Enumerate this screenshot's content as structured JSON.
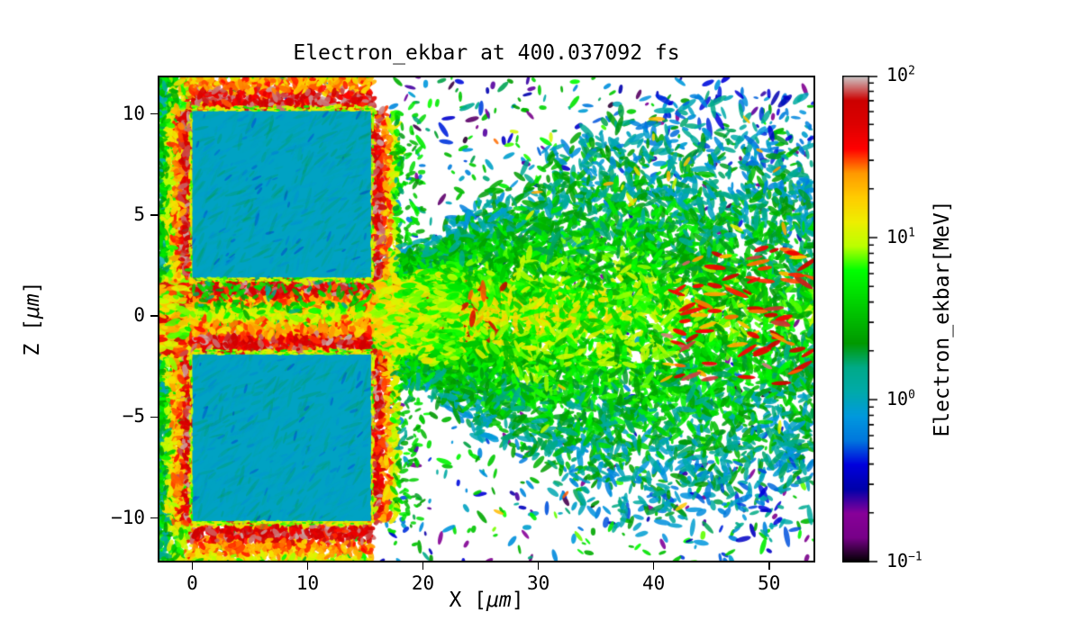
{
  "figure": {
    "title": "Electron_ekbar at 400.037092 fs"
  },
  "axes": {
    "xlabel_parts": [
      "X [",
      "μm",
      "]"
    ],
    "ylabel_parts": [
      "Z [",
      "μm",
      "]"
    ],
    "x_ticks": [
      {
        "value": 0,
        "label": "0"
      },
      {
        "value": 10,
        "label": "10"
      },
      {
        "value": 20,
        "label": "20"
      },
      {
        "value": 30,
        "label": "30"
      },
      {
        "value": 40,
        "label": "40"
      },
      {
        "value": 50,
        "label": "50"
      }
    ],
    "y_ticks": [
      {
        "value": 10,
        "label": "10"
      },
      {
        "value": 5,
        "label": "5"
      },
      {
        "value": 0,
        "label": "0"
      },
      {
        "value": -5,
        "label": "−5"
      },
      {
        "value": -10,
        "label": "−10"
      }
    ]
  },
  "colorbar": {
    "label": "Electron_ekbar[MeV]",
    "scale": "log",
    "vmin": 0.1,
    "vmax": 100,
    "tick_exponents": [
      2,
      1,
      0,
      -1
    ]
  },
  "chart_data": {
    "type": "heatmap",
    "title": "Electron_ekbar at 400.037092 fs",
    "quantity": "Electron_ekbar",
    "unit": "MeV",
    "time_fs": 400.037092,
    "xlabel": "X [μm]",
    "ylabel": "Z [μm]",
    "xlim": [
      -3,
      54
    ],
    "ylim": [
      -12.2,
      11.9
    ],
    "x_ticks": [
      0,
      10,
      20,
      30,
      40,
      50
    ],
    "y_ticks": [
      10,
      5,
      0,
      -5,
      -10
    ],
    "colorbar": {
      "label": "Electron_ekbar[MeV]",
      "scale": "log",
      "vmin": 0.1,
      "vmax": 100,
      "ticks": [
        100,
        10,
        1,
        0.1
      ]
    },
    "colormap": "nipy_spectral",
    "colormap_stops": [
      [
        0,
        0,
        0
      ],
      [
        0.4667,
        0,
        0.5333
      ],
      [
        0.5333,
        0,
        0.6
      ],
      [
        0,
        0,
        0.6667
      ],
      [
        0,
        0,
        0.8667
      ],
      [
        0,
        0.4667,
        0.8667
      ],
      [
        0,
        0.6,
        0.8667
      ],
      [
        0,
        0.6667,
        0.6667
      ],
      [
        0,
        0.6667,
        0.5333
      ],
      [
        0,
        0.6,
        0
      ],
      [
        0,
        0.7333,
        0
      ],
      [
        0,
        0.8667,
        0
      ],
      [
        0,
        1,
        0
      ],
      [
        0.7333,
        1,
        0
      ],
      [
        0.9333,
        0.9333,
        0
      ],
      [
        1,
        0.8,
        0
      ],
      [
        1,
        0.6,
        0
      ],
      [
        1,
        0,
        0
      ],
      [
        0.8667,
        0,
        0
      ],
      [
        0.8,
        0,
        0
      ],
      [
        0.8,
        0.8,
        0.8
      ]
    ],
    "render_seed": 7,
    "features": [
      {
        "name": "left-preplasma",
        "type": "speckle-band",
        "x": [
          -3,
          0.2
        ],
        "z": [
          -12.2,
          11.9
        ],
        "value_mev": [
          0.6,
          60
        ]
      },
      {
        "name": "upper-target-block",
        "type": "solid-rect",
        "x": [
          0,
          15.5
        ],
        "z": [
          1.9,
          10.15
        ],
        "value_mev": 0.95
      },
      {
        "name": "lower-target-block",
        "type": "solid-rect",
        "x": [
          0,
          15.5
        ],
        "z": [
          -10.15,
          -1.9
        ],
        "value_mev": 0.95
      },
      {
        "name": "hot-target-edges",
        "type": "frame",
        "width_um": 2.6,
        "value_mev": [
          8,
          95
        ]
      },
      {
        "name": "central-channel",
        "type": "speckle-band",
        "x": [
          -3,
          16
        ],
        "z": [
          -1.9,
          1.9
        ],
        "value_mev": [
          6,
          90
        ]
      },
      {
        "name": "channel-exit",
        "type": "speckle-band",
        "x": [
          16,
          23
        ],
        "z": [
          -1.7,
          1.7
        ],
        "value_mev": [
          5,
          40
        ]
      },
      {
        "name": "electron-plume",
        "type": "speckle-cone",
        "x": [
          15.5,
          54
        ],
        "half_width_start_um": 2.2,
        "spread": 0.42,
        "value_mev": [
          0.4,
          15
        ]
      },
      {
        "name": "far-field-specks",
        "type": "speckle-scatter",
        "count": 1600,
        "value_mev": [
          0.1,
          8
        ]
      },
      {
        "name": "axial-hot-streaks",
        "type": "speckle-band",
        "x": [
          41,
          54
        ],
        "z": [
          -3.4,
          3.4
        ],
        "value_mev": [
          18,
          90
        ]
      }
    ]
  }
}
